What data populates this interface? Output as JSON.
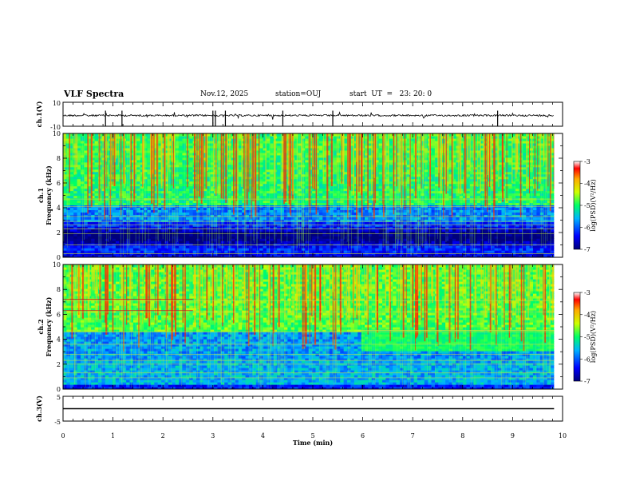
{
  "header": {
    "title": "VLF Spectra",
    "date": "Nov.12, 2025",
    "station": "station=OUJ",
    "start": "start  UT  =   23: 20: 0"
  },
  "chart_data": [
    {
      "type": "line",
      "ylabel": "ch.1(V)",
      "ylim": [
        -10,
        10
      ],
      "ytick_labels": [
        "10",
        "-10"
      ],
      "xlim": [
        0,
        10
      ],
      "baseline": -1,
      "trace_range": [
        0,
        9.83
      ],
      "grid": false
    },
    {
      "type": "heatmap",
      "ylabel_line1": "ch.1",
      "ylabel_line2": "Frequency (kHz)",
      "ylim": [
        0,
        10
      ],
      "ytick_labels": [
        "0",
        "2",
        "4",
        "6",
        "8",
        "10"
      ],
      "xlim": [
        0,
        10
      ],
      "data_range": [
        0,
        9.83
      ],
      "colorbar": {
        "label": "log(PSD)(V²/Hz)",
        "range": [
          -7,
          -3
        ],
        "tick_labels": [
          "-3",
          "-4",
          "-5",
          "-6",
          "-7"
        ]
      }
    },
    {
      "type": "heatmap",
      "ylabel_line1": "ch.2",
      "ylabel_line2": "Frequency (kHz)",
      "ylim": [
        0,
        10
      ],
      "ytick_labels": [
        "0",
        "2",
        "4",
        "6",
        "8",
        "10"
      ],
      "xlim": [
        0,
        10
      ],
      "data_range": [
        0,
        9.83
      ],
      "colorbar": {
        "label": "log(PSD)(V²/Hz)",
        "range": [
          -7,
          -3
        ],
        "tick_labels": [
          "-3",
          "-4",
          "-5",
          "-6",
          "-7"
        ]
      }
    },
    {
      "type": "line",
      "ylabel": "ch.3(V)",
      "ylim": [
        -5,
        5
      ],
      "ytick_labels": [
        "5",
        "-5"
      ],
      "xlim": [
        0,
        10
      ],
      "baseline": 0,
      "trace_range": [
        0,
        9.83
      ],
      "grid": false
    }
  ],
  "x_axis": {
    "label": "Time (min)",
    "tick_labels": [
      "0",
      "1",
      "2",
      "3",
      "4",
      "5",
      "6",
      "7",
      "8",
      "9",
      "10"
    ]
  }
}
